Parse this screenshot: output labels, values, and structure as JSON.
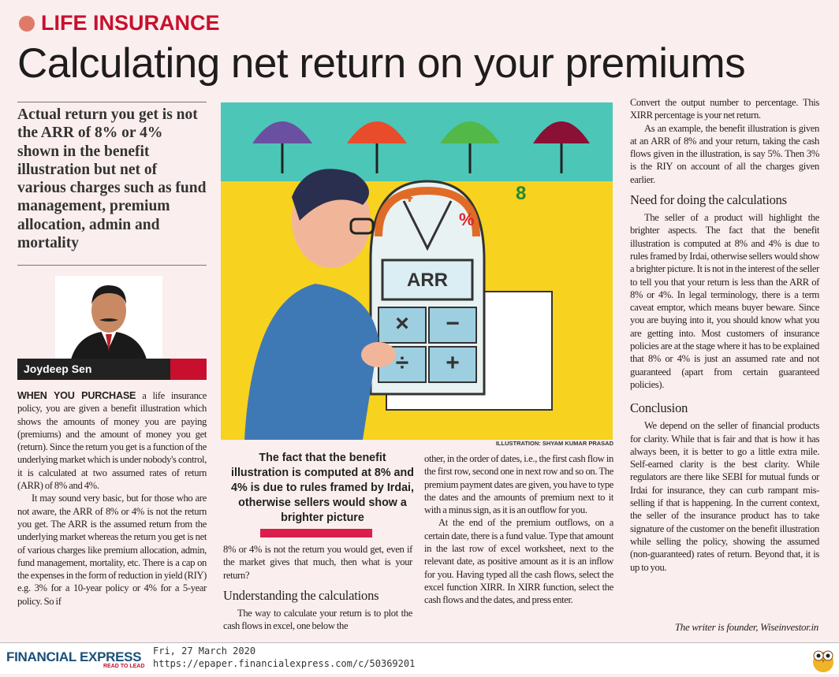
{
  "section": "LIFE INSURANCE",
  "headline": "Calculating net return on your premiums",
  "standfirst": "Actual return you get is not the ARR of 8% or 4% shown in the benefit illustration but net of various charges such as fund management, premium allocation, admin and mortality",
  "author": "Joydeep Sen",
  "illustration": {
    "credit": "ILLUSTRATION: SHYAM KUMAR PRASAD",
    "gauge_low": "4",
    "gauge_high": "8",
    "gauge_symbol": "%",
    "calc_display": "ARR",
    "calc_keys": [
      "×",
      "−",
      "÷",
      "+"
    ],
    "colors": {
      "background": "#f7d21e",
      "top_band": "#4cc6b7"
    }
  },
  "col1": {
    "lead": "WHEN YOU PURCHASE",
    "p1": " a life insurance policy, you are given a benefit illustration which shows the amounts of money you are paying (premiums) and the amount of money you get (return). Since the return you get is a function of the underlying market which is under nobody's control, it is calculated at two assumed rates of return (ARR) of 8% and 4%.",
    "p2": "It may sound very basic, but for those who are not aware, the ARR of 8% or 4% is not the return you get. The ARR is the assumed return from the underlying market whereas the return you get is net of various charges like premium allocation, admin, fund management, mortality, etc. There is a cap on the expenses in the form of reduction in yield (RIY) e.g. 3% for a 10-year policy or 4% for a 5-year policy. So if"
  },
  "pull_quote": "The fact that the benefit illustration is computed at 8% and 4% is due to rules framed by Irdai, otherwise sellers would show a brighter picture",
  "col2": {
    "p1": "8% or 4% is not the return you would get, even if the market gives that much, then what is your return?",
    "heading": "Understanding the calculations",
    "p2": "The way to calculate your return is to plot the cash flows in excel, one below the"
  },
  "col3": {
    "p1": "other, in the order of dates, i.e., the first cash flow in the first row, second one in next row and so on. The premium payment dates are given, you have to type the dates and the amounts of premium next to it with a minus sign, as it is an outflow for you.",
    "p2": "At the end of the premium outflows, on a certain date, there is a fund value. Type that amount in the last row of excel worksheet, next to the relevant date, as positive amount as it is an inflow for you. Having typed all the cash flows, select the excel function XIRR. In XIRR function, select the cash flows and the dates, and press enter."
  },
  "col4": {
    "p1": "Convert the output number to percentage. This XIRR percentage is your net return.",
    "p2": "As an example, the benefit illustration is given at an ARR of 8% and your return, taking the cash flows given in the illustration, is say 5%. Then 3% is the RIY on account of all the charges given earlier.",
    "heading1": "Need for doing the calculations",
    "p3": "The seller of a product will highlight the brighter aspects. The fact that the benefit illustration is computed at 8% and 4% is due to rules framed by Irdai, otherwise sellers would show a brighter picture. It is not in the interest of the seller to tell you that your return is less than the ARR of 8% or 4%. In legal terminology, there is a term caveat emptor, which means buyer beware. Since you are buying into it, you should know what you are getting into. Most customers of insurance policies are at the stage where it has to be explained that 8% or 4% is just an assumed rate and not guaranteed (apart from certain guaranteed policies).",
    "heading2": "Conclusion",
    "p4": "We depend on the seller of financial products for clarity. While that is fair and that is how it has always been, it is better to go a little extra mile. Self-earned clarity is the best clarity. While regulators are there like SEBI for mutual funds or Irdai for insurance, they can curb rampant mis-selling if that is happening. In the current context, the seller of the insurance product has to take signature of the customer on the benefit illustration while selling the policy, showing the assumed (non-guaranteed) rates of return. Beyond that, it is up to you.",
    "byline": "The writer is founder, Wiseinvestor.in"
  },
  "footer": {
    "brand": "FINANCIAL EXPRESS",
    "tagline": "READ TO LEAD",
    "date": "Fri, 27 March 2020",
    "url": "https://epaper.financialexpress.com/c/50369201"
  },
  "colors": {
    "accent": "#c8102e",
    "brand": "#1b4f7a",
    "page": "#fbeeee"
  }
}
